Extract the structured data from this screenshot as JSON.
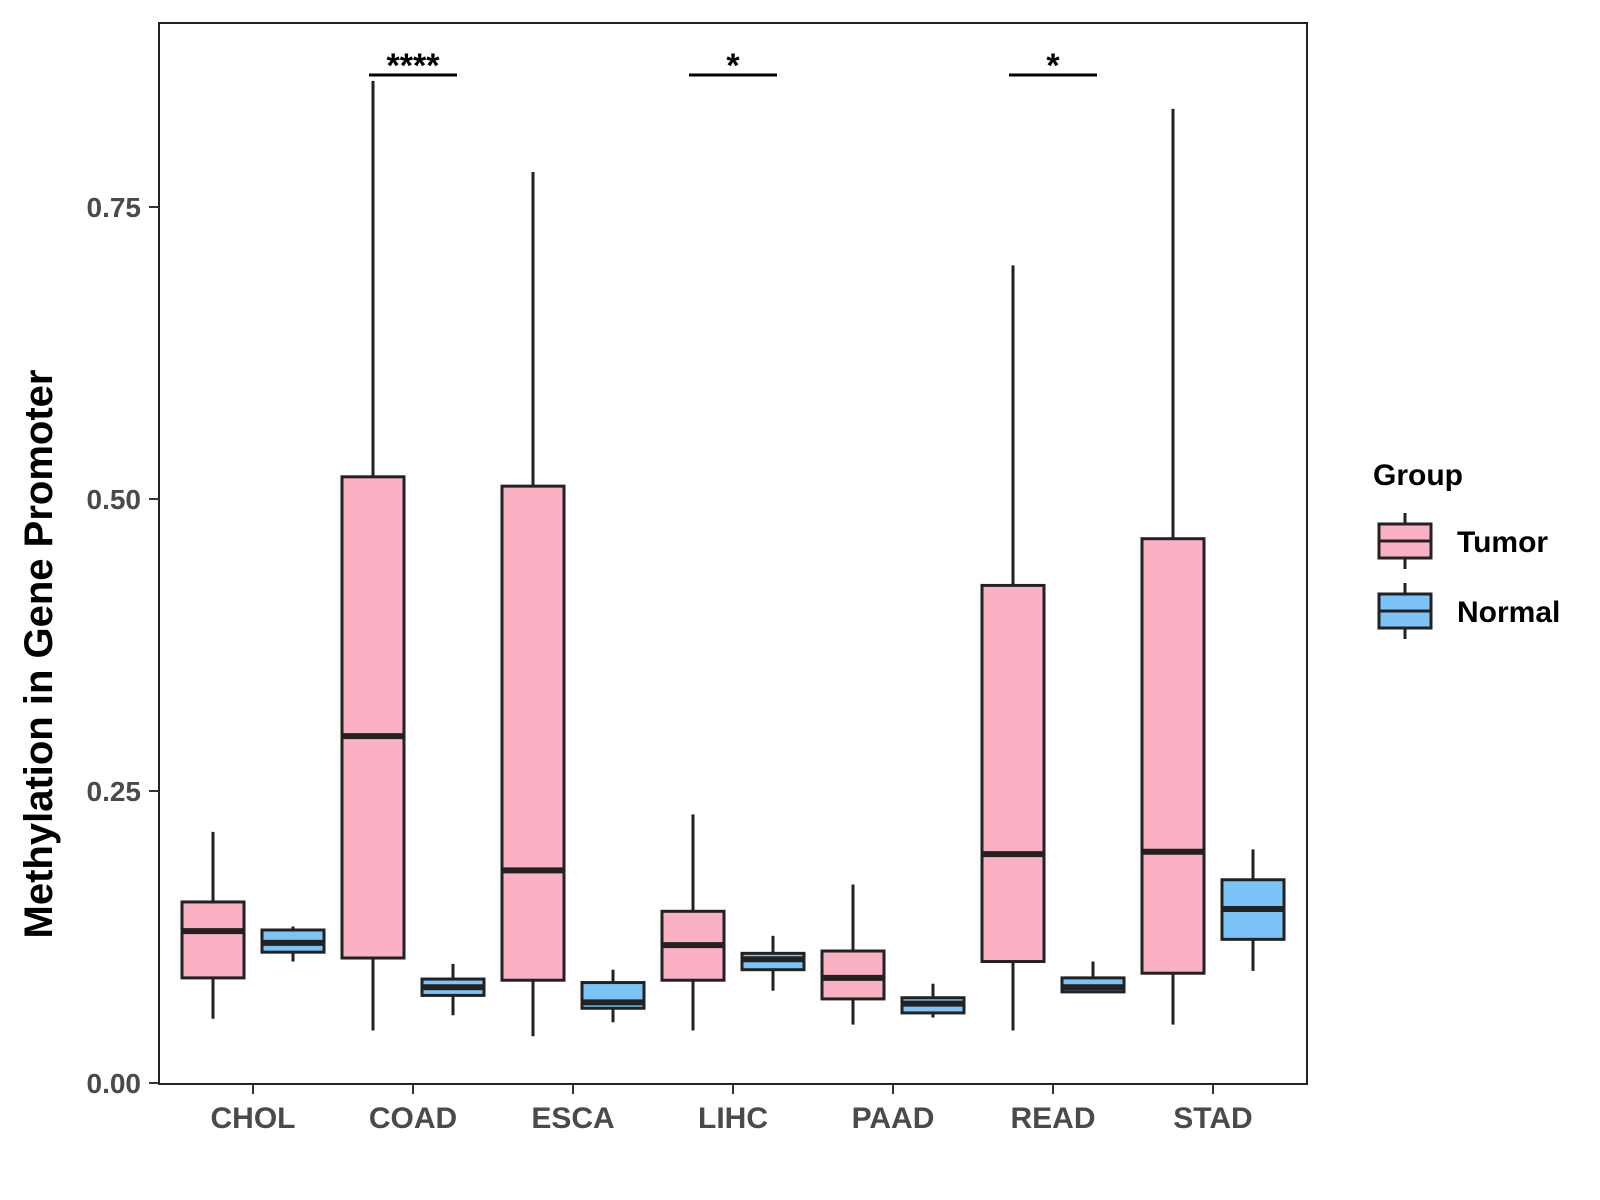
{
  "chart_data": {
    "type": "box",
    "title": "",
    "xlabel": "",
    "ylabel": "Methylation in Gene Promoter",
    "ylim": [
      0,
      0.9
    ],
    "yticks": [
      {
        "value": 0.0,
        "label": "0.00"
      },
      {
        "value": 0.25,
        "label": "0.25"
      },
      {
        "value": 0.5,
        "label": "0.50"
      },
      {
        "value": 0.75,
        "label": "0.75"
      }
    ],
    "categories": [
      "CHOL",
      "COAD",
      "ESCA",
      "LIHC",
      "PAAD",
      "READ",
      "STAD"
    ],
    "legend": {
      "title": "Group",
      "position": "right",
      "entries": [
        {
          "name": "Tumor",
          "color": "#FBB1C4"
        },
        {
          "name": "Normal",
          "color": "#7CC4F8"
        }
      ]
    },
    "series": [
      {
        "name": "Tumor",
        "color": "#FBB1C4",
        "boxes": [
          {
            "category": "CHOL",
            "min": 0.055,
            "q1": 0.09,
            "median": 0.13,
            "q3": 0.155,
            "max": 0.215
          },
          {
            "category": "COAD",
            "min": 0.045,
            "q1": 0.107,
            "median": 0.297,
            "q3": 0.519,
            "max": 0.858
          },
          {
            "category": "ESCA",
            "min": 0.04,
            "q1": 0.088,
            "median": 0.182,
            "q3": 0.511,
            "max": 0.78
          },
          {
            "category": "LIHC",
            "min": 0.045,
            "q1": 0.088,
            "median": 0.118,
            "q3": 0.147,
            "max": 0.23
          },
          {
            "category": "PAAD",
            "min": 0.05,
            "q1": 0.072,
            "median": 0.09,
            "q3": 0.113,
            "max": 0.17
          },
          {
            "category": "READ",
            "min": 0.045,
            "q1": 0.104,
            "median": 0.196,
            "q3": 0.426,
            "max": 0.7
          },
          {
            "category": "STAD",
            "min": 0.05,
            "q1": 0.094,
            "median": 0.198,
            "q3": 0.466,
            "max": 0.834
          }
        ]
      },
      {
        "name": "Normal",
        "color": "#7CC4F8",
        "boxes": [
          {
            "category": "CHOL",
            "min": 0.104,
            "q1": 0.112,
            "median": 0.12,
            "q3": 0.131,
            "max": 0.134
          },
          {
            "category": "COAD",
            "min": 0.058,
            "q1": 0.075,
            "median": 0.082,
            "q3": 0.089,
            "max": 0.102
          },
          {
            "category": "ESCA",
            "min": 0.052,
            "q1": 0.064,
            "median": 0.069,
            "q3": 0.086,
            "max": 0.097
          },
          {
            "category": "LIHC",
            "min": 0.079,
            "q1": 0.097,
            "median": 0.106,
            "q3": 0.111,
            "max": 0.126
          },
          {
            "category": "PAAD",
            "min": 0.056,
            "q1": 0.06,
            "median": 0.068,
            "q3": 0.073,
            "max": 0.085
          },
          {
            "category": "READ",
            "min": 0.078,
            "q1": 0.078,
            "median": 0.082,
            "q3": 0.09,
            "max": 0.104
          },
          {
            "category": "STAD",
            "min": 0.096,
            "q1": 0.123,
            "median": 0.149,
            "q3": 0.174,
            "max": 0.2
          }
        ]
      }
    ],
    "annotations": [
      {
        "category": "COAD",
        "label": "****"
      },
      {
        "category": "LIHC",
        "label": "*"
      },
      {
        "category": "READ",
        "label": "*"
      }
    ]
  }
}
